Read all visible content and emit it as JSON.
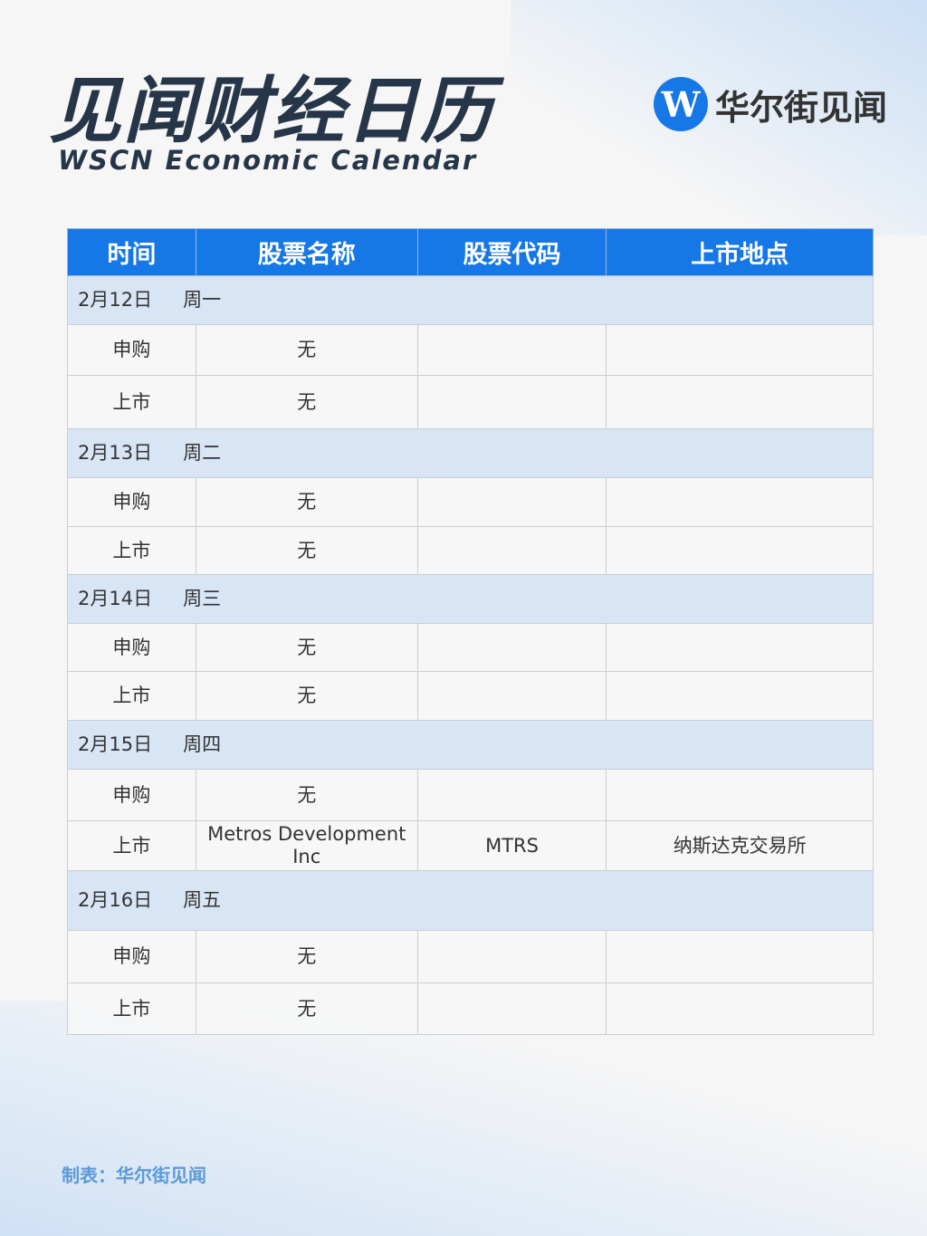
{
  "header": {
    "title": "见闻财经日历",
    "subtitle": "WSCN Economic Calendar",
    "logo_text": "华尔街见闻",
    "logo_mark": "W"
  },
  "table": {
    "columns": [
      "时间",
      "股票名称",
      "股票代码",
      "上市地点"
    ],
    "days": [
      {
        "date": "2月12日",
        "weekday": "周一",
        "rows": [
          [
            "申购",
            "无",
            "",
            ""
          ],
          [
            "上市",
            "无",
            "",
            ""
          ]
        ]
      },
      {
        "date": "2月13日",
        "weekday": "周二",
        "rows": [
          [
            "申购",
            "无",
            "",
            ""
          ],
          [
            "上市",
            "无",
            "",
            ""
          ]
        ]
      },
      {
        "date": "2月14日",
        "weekday": "周三",
        "rows": [
          [
            "申购",
            "无",
            "",
            ""
          ],
          [
            "上市",
            "无",
            "",
            ""
          ]
        ]
      },
      {
        "date": "2月15日",
        "weekday": "周四",
        "rows": [
          [
            "申购",
            "无",
            "",
            ""
          ],
          [
            "上市",
            "Metros Development Inc",
            "MTRS",
            "纳斯达克交易所"
          ]
        ]
      },
      {
        "date": "2月16日",
        "weekday": "周五",
        "rows": [
          [
            "申购",
            "无",
            "",
            ""
          ],
          [
            "上市",
            "无",
            "",
            ""
          ]
        ]
      }
    ]
  },
  "footer": {
    "text": "制表：华尔街见闻"
  },
  "colors": {
    "accent": "#1677e6",
    "title": "#263548",
    "day_row": "#d6e4f3",
    "footer": "#5b9ad8"
  }
}
